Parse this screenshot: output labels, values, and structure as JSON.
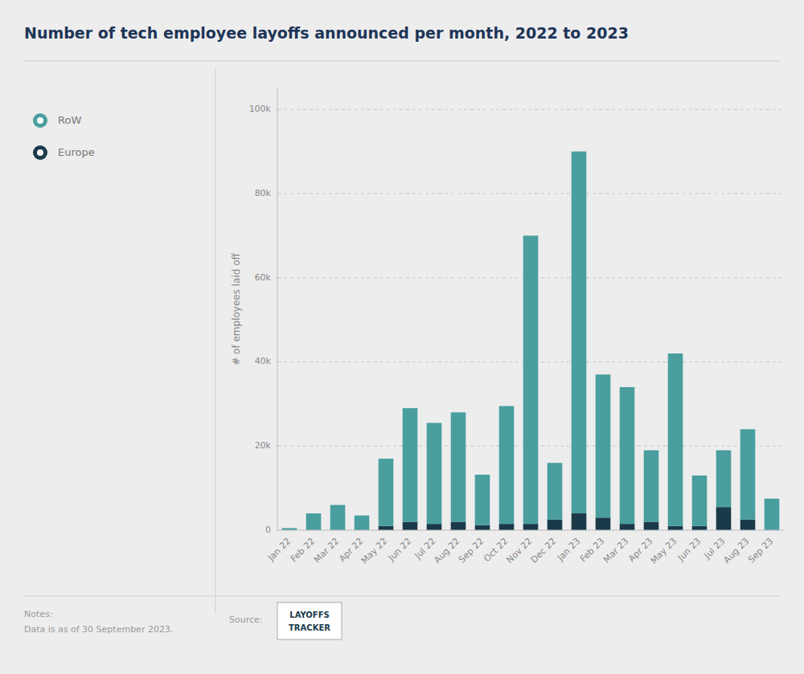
{
  "chart_data": {
    "type": "bar",
    "stacked": true,
    "title": "Number of tech employee layoffs announced per month, 2022 to 2023",
    "y_label": "# of employees laid off",
    "categories": [
      "Jan 22",
      "Feb 22",
      "Mar 22",
      "Apr 22",
      "May 22",
      "Jun 22",
      "Jul 22",
      "Aug 22",
      "Sep 22",
      "Oct 22",
      "Nov 22",
      "Dec 22",
      "Jan 23",
      "Feb 23",
      "Mar 23",
      "Apr 23",
      "May 23",
      "Jun 23",
      "Jul 23",
      "Aug 23",
      "Sep 23"
    ],
    "series": [
      {
        "name": "Europe",
        "color": "#1a3a4a",
        "values": [
          0,
          0,
          0,
          0,
          1000,
          2000,
          1500,
          2000,
          1200,
          1500,
          1500,
          2500,
          4000,
          3000,
          1500,
          2000,
          1000,
          1000,
          5500,
          2500,
          0
        ]
      },
      {
        "name": "RoW",
        "color": "#4a9e9e",
        "values": [
          500,
          4000,
          6000,
          3500,
          16000,
          27000,
          24000,
          26000,
          12000,
          28000,
          68500,
          13500,
          86000,
          34000,
          32500,
          17000,
          41000,
          12000,
          13500,
          21500,
          7500
        ]
      }
    ],
    "ylim": [
      0,
      105000
    ],
    "yticks": [
      0,
      {
        "value": 20000,
        "label": "20k"
      },
      {
        "value": 40000,
        "label": "40k"
      },
      {
        "value": 60000,
        "label": "60k"
      },
      {
        "value": 80000,
        "label": "80k"
      },
      {
        "value": 100000,
        "label": "100k"
      }
    ],
    "grid": true,
    "legend": "left",
    "annotations": [
      "Notes:",
      "Data is as of 30 September 2023.",
      "Source:",
      "LAYOFFS",
      "TRACKER"
    ]
  }
}
